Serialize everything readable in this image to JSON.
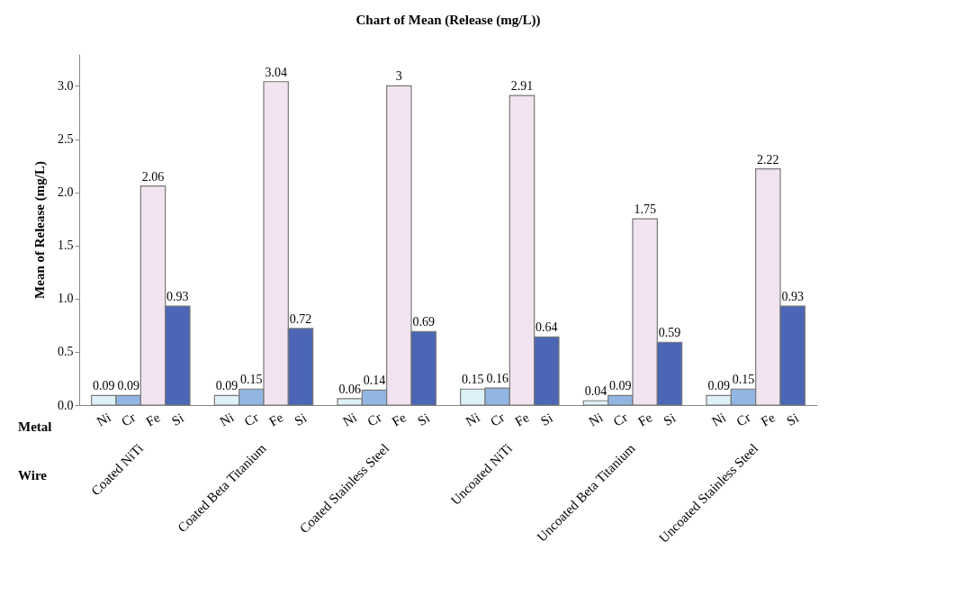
{
  "chart_data": {
    "type": "bar",
    "title": "Chart of Mean (Release (mg/L))",
    "ylabel": "Mean of Release (mg/L)",
    "xlabel": "Wire",
    "annotations": [
      "Metal"
    ],
    "categories": [
      "Coated NiTi",
      "Coated Beta Titanium",
      "Coated Stainless Steel",
      "Uncoated NiTi",
      "Uncoated Beta Titanium",
      "Uncoated Stainless Steel"
    ],
    "series": [
      {
        "name": "Ni",
        "color": "#dff1f8",
        "values": [
          0.09,
          0.09,
          0.06,
          0.15,
          0.04,
          0.09
        ]
      },
      {
        "name": "Cr",
        "color": "#92b6e2",
        "values": [
          0.09,
          0.15,
          0.14,
          0.16,
          0.09,
          0.15
        ]
      },
      {
        "name": "Fe",
        "color": "#f1e4f0",
        "values": [
          2.06,
          3.04,
          3,
          2.91,
          1.75,
          2.22
        ]
      },
      {
        "name": "Si",
        "color": "#4a66b5",
        "values": [
          0.93,
          0.72,
          0.69,
          0.64,
          0.59,
          0.93
        ]
      }
    ],
    "ylim": [
      0,
      3.3
    ],
    "yticks": [
      {
        "value": 0,
        "label": "0.0"
      },
      {
        "value": 0.5,
        "label": "0.5"
      },
      {
        "value": 1,
        "label": "1.0"
      },
      {
        "value": 1.5,
        "label": "1.5"
      },
      {
        "value": 2,
        "label": "2.0"
      },
      {
        "value": 2.5,
        "label": "2.5"
      },
      {
        "value": 3,
        "label": "3.0"
      }
    ],
    "grid": false,
    "data_labels": true
  }
}
